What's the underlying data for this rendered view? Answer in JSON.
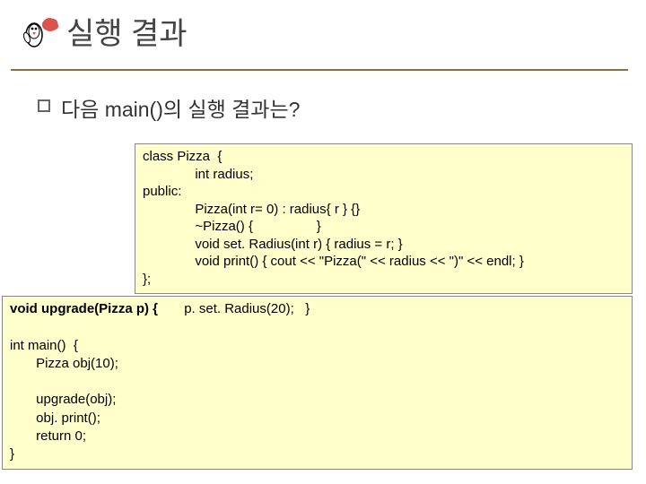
{
  "header": {
    "title": "실행 결과",
    "title_color": "#444444",
    "title_fontsize": 34,
    "underline_color": "#8b6f47"
  },
  "bullet": {
    "text": "다음 main()의 실행 결과는?",
    "fontsize": 23
  },
  "codebox1": {
    "background": "#ffffcc",
    "border_color": "#888888",
    "font_family": "Arial",
    "fontsize": 15,
    "lines": [
      "class Pizza  {",
      "              int radius;",
      "public:",
      "              Pizza(int r= 0) : radius{ r } {}",
      "              ~Pizza() {                 }",
      "              void set. Radius(int r) { radius = r; }",
      "              void print() { cout << \"Pizza(\" << radius << \")\" << endl; }",
      "};"
    ]
  },
  "codebox2": {
    "background": "#ffffcc",
    "border_color": "#888888",
    "font_family": "Arial",
    "fontsize": 15,
    "line1_prefix": "void upgrade(Pizza p) {",
    "line1_suffix": "       p. set. Radius(20);   }",
    "rest": [
      "",
      "int main()  {",
      "       Pizza obj(10);",
      "",
      "       upgrade(obj);",
      "       obj. print();",
      "       return 0;",
      "}"
    ]
  },
  "logo": {
    "penguin_body": "#ffffff",
    "penguin_outline": "#000000",
    "beak_color": "#d9534f",
    "cloud_color": "#d9534f"
  }
}
